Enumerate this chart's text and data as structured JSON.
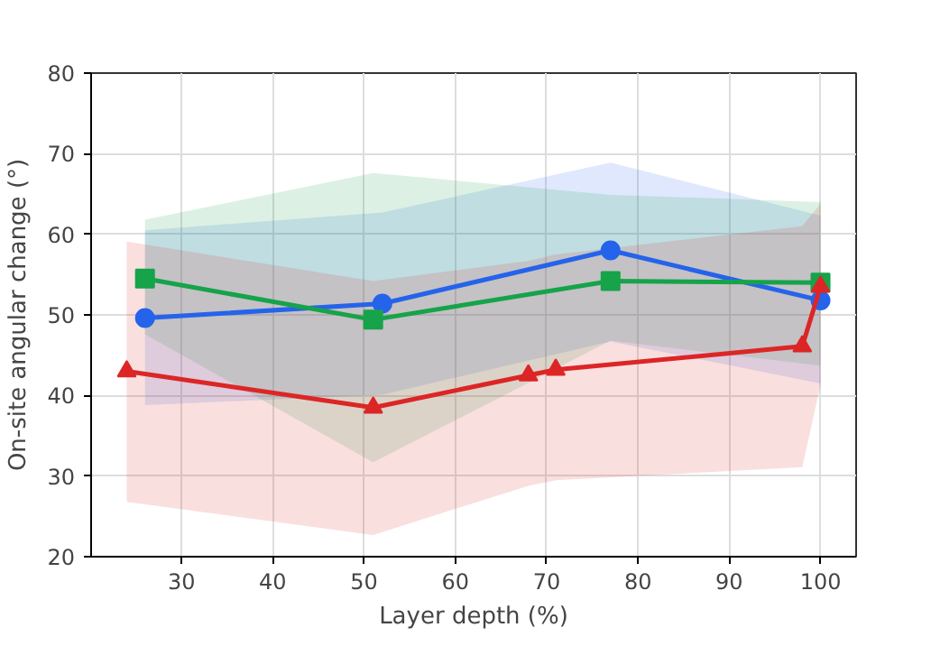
{
  "chart_data": {
    "type": "line",
    "xlabel": "Layer depth (%)",
    "ylabel": "On-site angular change (°)",
    "xlim": [
      20.1,
      103.9
    ],
    "ylim": [
      20,
      80
    ],
    "xticks": [
      30,
      40,
      50,
      60,
      70,
      80,
      90,
      100
    ],
    "yticks": [
      20,
      30,
      40,
      50,
      60,
      70,
      80
    ],
    "grid": true,
    "series": [
      {
        "color": "#2563eb",
        "marker": "circle",
        "x": [
          26,
          52,
          77,
          100
        ],
        "values": [
          49.6,
          51.4,
          58.0,
          51.8
        ],
        "lower": [
          38.8,
          40.1,
          46.7,
          41.5
        ],
        "upper": [
          60.5,
          62.7,
          68.9,
          62.3
        ]
      },
      {
        "color": "#16a34a",
        "marker": "square",
        "x": [
          26,
          51,
          77,
          100
        ],
        "values": [
          54.5,
          49.4,
          54.2,
          54.0
        ],
        "lower": [
          47.6,
          31.7,
          46.8,
          43.7
        ],
        "upper": [
          61.8,
          67.6,
          64.9,
          64.0
        ]
      },
      {
        "color": "#dc2626",
        "marker": "triangle",
        "x": [
          24,
          51,
          68,
          71,
          98,
          100
        ],
        "values": [
          43.0,
          38.5,
          42.5,
          43.2,
          46.1,
          53.5
        ],
        "lower": [
          26.8,
          22.7,
          28.8,
          29.5,
          31.1,
          41.3
        ],
        "upper": [
          59.1,
          54.2,
          56.7,
          57.5,
          61.0,
          63.8
        ]
      }
    ]
  }
}
